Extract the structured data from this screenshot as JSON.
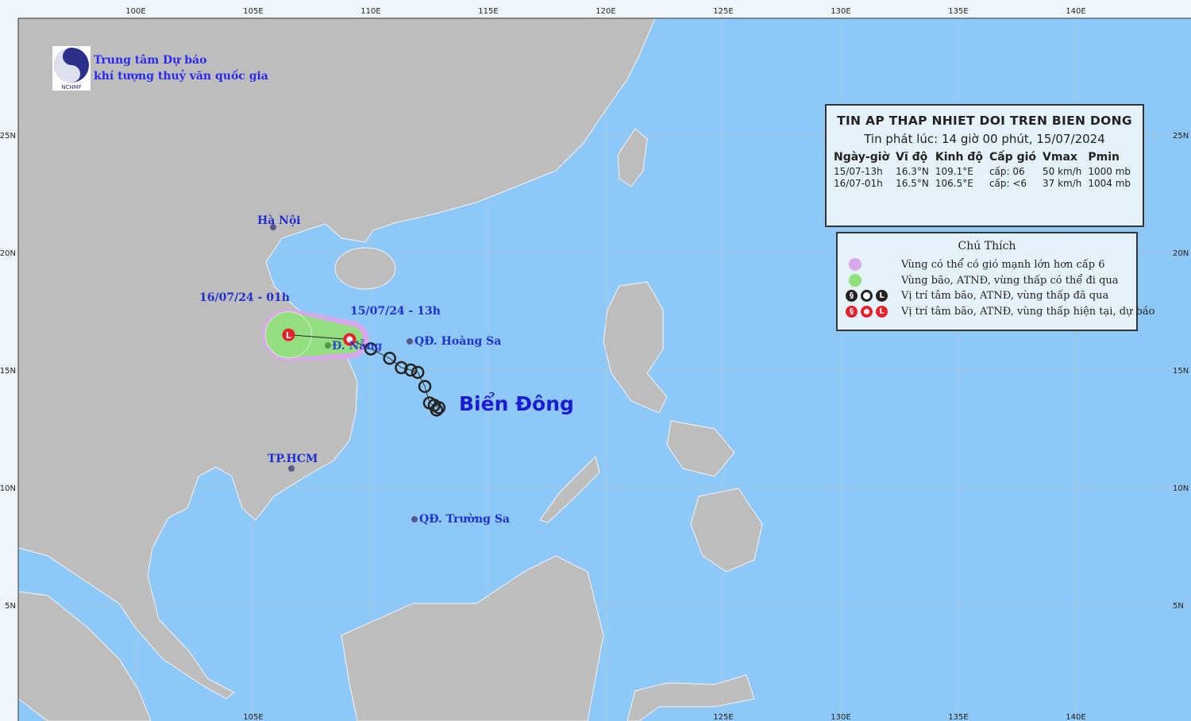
{
  "logo": {
    "line1": "Trung tâm Dự báo",
    "line2": "khí tượng thuỷ văn quốc gia",
    "mark_text": "NCHMF"
  },
  "axes": {
    "lon_ticks": [
      "100E",
      "105E",
      "110E",
      "115E",
      "120E",
      "125E",
      "130E",
      "135E",
      "140E"
    ],
    "lon_values": [
      100,
      105,
      110,
      115,
      120,
      125,
      130,
      135,
      140
    ],
    "lat_ticks": [
      "25N",
      "20N",
      "15N",
      "10N",
      "5N"
    ],
    "lat_values": [
      25,
      20,
      15,
      10,
      5
    ],
    "bottom_ticks": [
      "105E",
      "125E",
      "130E",
      "135E",
      "140E"
    ],
    "bottom_values": [
      105,
      125,
      130,
      135,
      140
    ]
  },
  "labels": {
    "ha_noi": "Hà Nội",
    "tp_hcm": "TP.HCM",
    "da_nang": "Đ. Nẵng",
    "hoang_sa": "QĐ. Hoàng Sa",
    "truong_sa": "QĐ. Trường Sa",
    "forecast_time": "16/07/24 - 01h",
    "current_time": "15/07/24 - 13h",
    "sea_name": "Biển Đông"
  },
  "info_box": {
    "title": "TIN AP THAP NHIET DOI TREN BIEN DONG",
    "issued": "Tin phát lúc: 14 giờ 00 phút, 15/07/2024",
    "headers": [
      "Ngày-giờ",
      "Vĩ độ",
      "Kinh độ",
      "Cấp gió",
      "Vmax",
      "Pmin"
    ],
    "rows": [
      [
        "15/07-13h",
        "16.3°N",
        "109.1°E",
        "cấp: 06",
        "50 km/h",
        "1000 mb"
      ],
      [
        "16/07-01h",
        "16.5°N",
        "106.5°E",
        "cấp: <6",
        "37 km/h",
        "1004 mb"
      ]
    ]
  },
  "legend": {
    "title": "Chú Thích",
    "items": [
      "Vùng có thể có gió mạnh lớn hơn cấp 6",
      "Vùng bão, ATNĐ, vùng thấp có thể đi qua",
      "Vị trí tâm bão, ATNĐ, vùng thấp đã qua",
      "Vị trí tâm bão, ATNĐ, vùng thấp hiện tại, dự báo"
    ],
    "colors": {
      "strong_wind": "#d8a8e8",
      "cone": "#8fe07a",
      "past": "#222222",
      "current": "#e8202a"
    }
  },
  "track": {
    "past": [
      [
        110.0,
        15.9
      ],
      [
        110.8,
        15.5
      ],
      [
        111.3,
        15.1
      ],
      [
        111.7,
        15.0
      ],
      [
        112.0,
        14.9
      ],
      [
        112.3,
        14.3
      ],
      [
        112.5,
        13.6
      ],
      [
        112.7,
        13.5
      ],
      [
        112.9,
        13.4
      ],
      [
        112.8,
        13.3
      ]
    ],
    "current": [
      109.1,
      16.3
    ],
    "forecast": [
      106.5,
      16.5
    ]
  },
  "colors": {
    "sea": "#8ec8f8",
    "land": "#bdbdbd",
    "label": "#1f2fd0"
  }
}
